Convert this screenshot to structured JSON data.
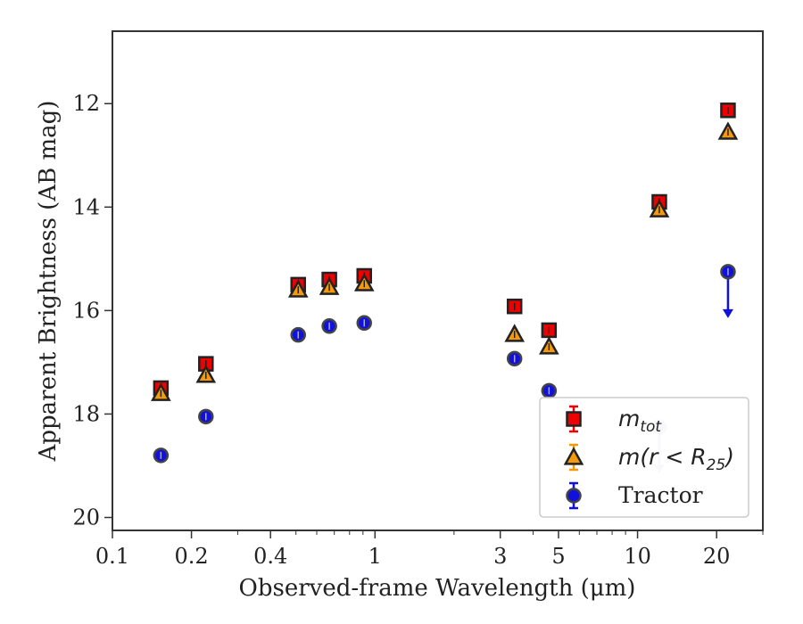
{
  "chart_data": {
    "type": "scatter",
    "title": "",
    "xlabel": "Observed-frame Wavelength (μm)",
    "ylabel": "Apparent Brightness (AB mag)",
    "xscale": "log",
    "xlim": [
      0.1,
      30
    ],
    "ylim": [
      20.25,
      10.6
    ],
    "y_inverted": true,
    "xticks": [
      {
        "value": 0.1,
        "label": "0.1"
      },
      {
        "value": 0.2,
        "label": "0.2"
      },
      {
        "value": 0.4,
        "label": "0.4"
      },
      {
        "value": 1,
        "label": "1"
      },
      {
        "value": 3,
        "label": "3"
      },
      {
        "value": 5,
        "label": "5"
      },
      {
        "value": 10,
        "label": "10"
      },
      {
        "value": 20,
        "label": "20"
      }
    ],
    "yticks": [
      {
        "value": 12,
        "label": "12"
      },
      {
        "value": 14,
        "label": "14"
      },
      {
        "value": 16,
        "label": "16"
      },
      {
        "value": 18,
        "label": "18"
      },
      {
        "value": 20,
        "label": "20"
      }
    ],
    "legend_position": "lower-right",
    "series": [
      {
        "name_main": "m",
        "name_sub": "tot",
        "marker": "square",
        "color": "#ee0000",
        "edge_color": "#222222",
        "points": [
          {
            "x": 0.153,
            "y": 17.5
          },
          {
            "x": 0.227,
            "y": 17.03
          },
          {
            "x": 0.51,
            "y": 15.5
          },
          {
            "x": 0.67,
            "y": 15.4
          },
          {
            "x": 0.91,
            "y": 15.33
          },
          {
            "x": 3.4,
            "y": 15.92
          },
          {
            "x": 4.6,
            "y": 16.38
          },
          {
            "x": 12.1,
            "y": 13.9
          },
          {
            "x": 22.1,
            "y": 12.13
          }
        ]
      },
      {
        "name_main": "m(r < R",
        "name_sub": "25",
        "name_close": ")",
        "marker": "triangle",
        "color": "#f59a0c",
        "edge_color": "#222222",
        "points": [
          {
            "x": 0.153,
            "y": 17.6
          },
          {
            "x": 0.227,
            "y": 17.25
          },
          {
            "x": 0.51,
            "y": 15.6
          },
          {
            "x": 0.67,
            "y": 15.55
          },
          {
            "x": 0.91,
            "y": 15.48
          },
          {
            "x": 3.4,
            "y": 16.46
          },
          {
            "x": 4.6,
            "y": 16.7
          },
          {
            "x": 12.1,
            "y": 14.05
          },
          {
            "x": 22.1,
            "y": 12.55
          }
        ]
      },
      {
        "name": "Tractor",
        "marker": "circle",
        "color": "#1111dd",
        "edge_color": "#444444",
        "points": [
          {
            "x": 0.153,
            "y": 18.8
          },
          {
            "x": 0.227,
            "y": 18.05
          },
          {
            "x": 0.51,
            "y": 16.47
          },
          {
            "x": 0.67,
            "y": 16.3
          },
          {
            "x": 0.91,
            "y": 16.24
          },
          {
            "x": 3.4,
            "y": 16.93
          },
          {
            "x": 4.6,
            "y": 17.55
          },
          {
            "x": 12.1,
            "y": 18.25,
            "upper_limit": true,
            "faded": true
          },
          {
            "x": 22.1,
            "y": 15.25,
            "upper_limit": true
          }
        ]
      }
    ]
  }
}
